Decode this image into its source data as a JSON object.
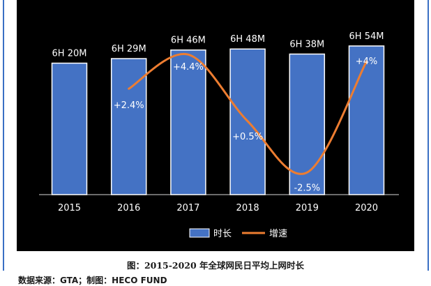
{
  "chart_data": {
    "type": "bar",
    "categories": [
      "2015",
      "2016",
      "2017",
      "2018",
      "2019",
      "2020"
    ],
    "series": [
      {
        "name": "时长",
        "type": "bar",
        "values": [
          380,
          389,
          406,
          408,
          398,
          414
        ],
        "data_labels": [
          "6H 20M",
          "6H 29M",
          "6H 46M",
          "6H 48M",
          "6H 38M",
          "6H 54M"
        ],
        "color": "#4472c4"
      },
      {
        "name": "增速",
        "type": "line",
        "values": [
          null,
          2.4,
          4.4,
          0.5,
          -2.5,
          4.0
        ],
        "data_labels": [
          "",
          "+2.4%",
          "+4.4%",
          "+0.5%",
          "-2.5%",
          "+4%"
        ],
        "color": "#ed7d31"
      }
    ],
    "legend": {
      "placement": "bottom-center",
      "items": [
        "时长",
        "增速"
      ]
    },
    "grid": false,
    "background": "#000000"
  },
  "caption": "图：2015-2020 年全球网民日平均上网时长",
  "source": "数据来源：GTA；制图：HECO FUND"
}
